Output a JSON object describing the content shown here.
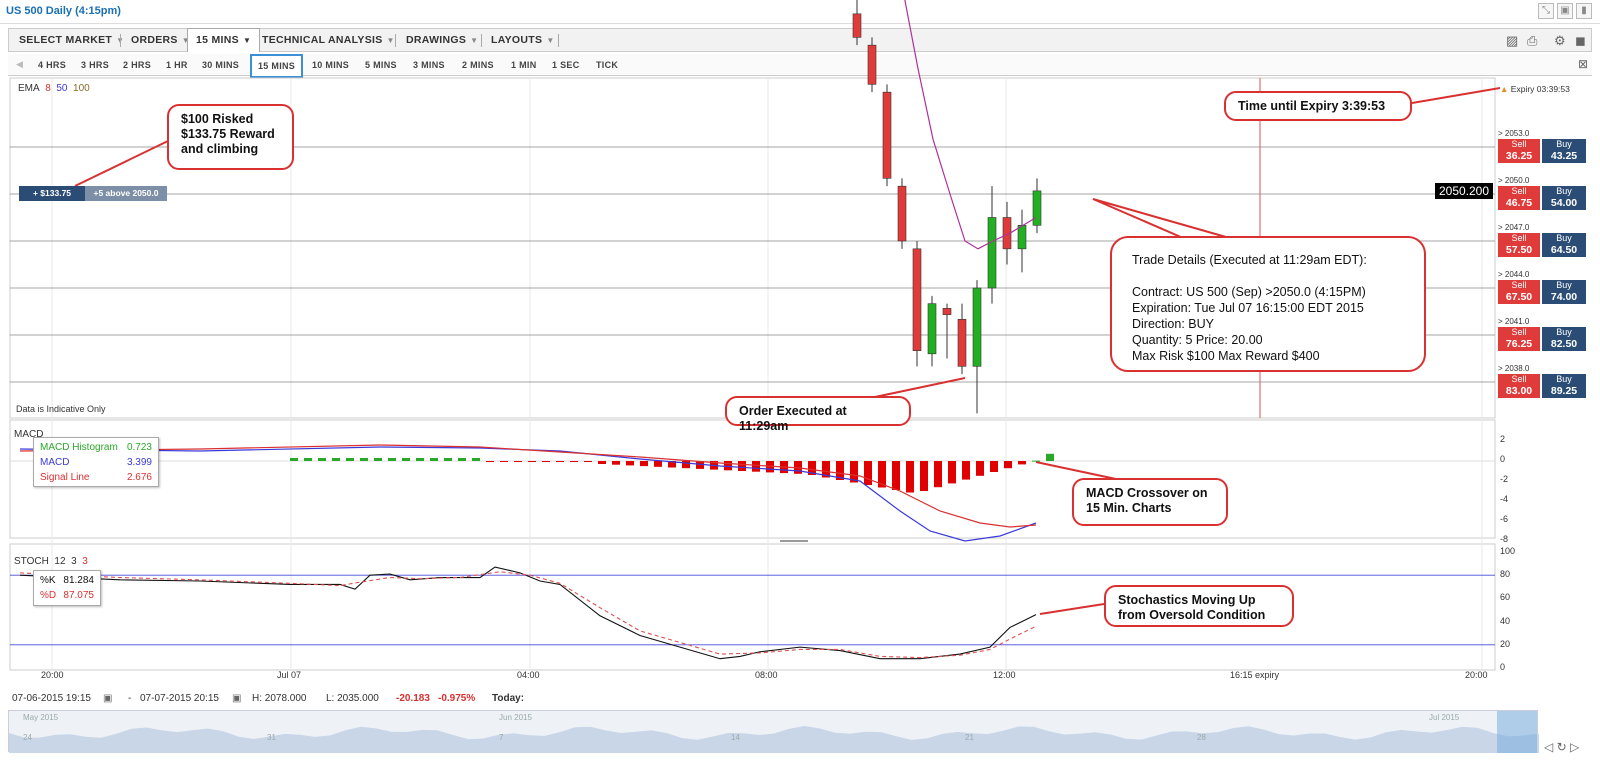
{
  "window": {
    "title": "US 500 Daily (4:15pm)"
  },
  "menu": [
    {
      "label": "SELECT MARKET"
    },
    {
      "label": "ORDERS"
    },
    {
      "label": "15 MINS"
    },
    {
      "label": "TECHNICAL ANALYSIS"
    },
    {
      "label": "DRAWINGS"
    },
    {
      "label": "LAYOUTS"
    }
  ],
  "timeframes": [
    "4 HRS",
    "3 HRS",
    "2 HRS",
    "1 HR",
    "30 MINS",
    "15 MINS",
    "10 MINS",
    "5 MINS",
    "3 MINS",
    "2 MINS",
    "1 MIN",
    "1 SEC",
    "TICK"
  ],
  "active_timeframe": "15 MINS",
  "ema": {
    "label": "EMA",
    "p1": "8",
    "p2": "50",
    "p3": "100"
  },
  "position_tag": {
    "left": "+ $133.75",
    "right": "+5 above 2050.0"
  },
  "indicative": "Data is Indicative Only",
  "expiry_label": "Expiry 03:39:53",
  "current_price": "2050.200",
  "price_levels": [
    {
      "level": "> 2053.0",
      "sell": "36.25",
      "buy": "43.25"
    },
    {
      "level": "> 2050.0",
      "sell": "46.75",
      "buy": "54.00"
    },
    {
      "level": "> 2047.0",
      "sell": "57.50",
      "buy": "64.50"
    },
    {
      "level": "> 2044.0",
      "sell": "67.50",
      "buy": "74.00"
    },
    {
      "level": "> 2041.0",
      "sell": "76.25",
      "buy": "82.50"
    },
    {
      "level": "> 2038.0",
      "sell": "83.00",
      "buy": "89.25"
    }
  ],
  "sell_label": "Sell",
  "buy_label": "Buy",
  "callouts": {
    "risk": [
      "$100 Risked",
      "$133.75 Reward",
      "and climbing"
    ],
    "expiry": "Time until Expiry 3:39:53",
    "order": "Order Executed at 11:29am",
    "macd": [
      "MACD Crossover on",
      "15 Min. Charts"
    ],
    "stoch": [
      "Stochastics Moving Up",
      "from Oversold Condition"
    ]
  },
  "trade_details": {
    "heading": "Trade Details (Executed at 11:29am EDT):",
    "lines": [
      "Contract: US 500 (Sep) >2050.0 (4:15PM)",
      "Expiration: Tue Jul 07 16:15:00 EDT 2015",
      "Direction: BUY",
      "Quantity: 5   Price: 20.00",
      "Max Risk $100  Max Reward $400"
    ]
  },
  "macd": {
    "label": "MACD",
    "legend": [
      {
        "name": "MACD Histogram",
        "value": "0.723",
        "color": "#2aa82a"
      },
      {
        "name": "MACD",
        "value": "3.399",
        "color": "#3a3adb"
      },
      {
        "name": "Signal Line",
        "value": "2.676",
        "color": "#d93030"
      }
    ],
    "axis": [
      "2",
      "0",
      "-2",
      "-4",
      "-6",
      "-8"
    ]
  },
  "stoch": {
    "label": "STOCH",
    "p1": "12",
    "p2": "3",
    "p3": "3",
    "legend": [
      {
        "name": "%K",
        "value": "81.284",
        "color": "#111111"
      },
      {
        "name": "%D",
        "value": "87.075",
        "color": "#d93030"
      }
    ],
    "axis": [
      "100",
      "80",
      "60",
      "40",
      "20",
      "0"
    ]
  },
  "time_axis": [
    "20:00",
    "Jul 07",
    "04:00",
    "08:00",
    "12:00",
    "16:15 expiry",
    "20:00"
  ],
  "status": {
    "from": "07-06-2015 19:15",
    "to": "07-07-2015 20:15",
    "high": "H: 2078.000",
    "low": "L: 2035.000",
    "change": "-20.183",
    "pct": "-0.975%",
    "today": "Today:"
  },
  "navigator": [
    "May 2015",
    "24",
    "31",
    "Jun 2015",
    "7",
    "14",
    "21",
    "28",
    "Jul 2015"
  ],
  "colors": {
    "up": "#22b022",
    "down": "#e03b3b",
    "accent": "#3a8fd8",
    "callout_border": "#d93030"
  }
}
